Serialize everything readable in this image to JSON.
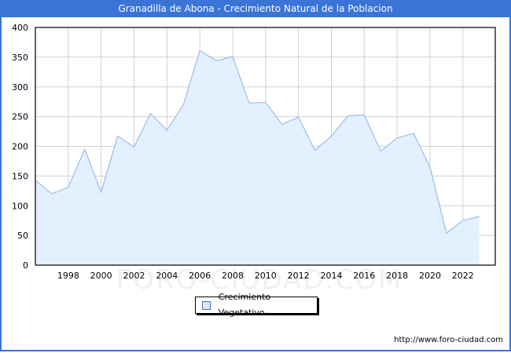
{
  "header": {
    "title": "Granadilla de Abona - Crecimiento Natural de la Poblacion"
  },
  "legend": {
    "label": "Crecimiento Vegetativo"
  },
  "footer": {
    "url": "http://www.foro-ciudad.com"
  },
  "watermark": "FORO-CIUDAD.COM",
  "colors": {
    "title_bar": "#3a74d6",
    "line": "#9bbdeb",
    "fill": "#e3f0fd",
    "grid": "#d0d0d0"
  },
  "axes": {
    "y_ticks": [
      "0",
      "50",
      "100",
      "150",
      "200",
      "250",
      "300",
      "350",
      "400"
    ],
    "x_ticks": [
      "1998",
      "2000",
      "2002",
      "2004",
      "2006",
      "2008",
      "2010",
      "2012",
      "2014",
      "2016",
      "2018",
      "2020",
      "2022"
    ]
  },
  "chart_data": {
    "type": "area",
    "title": "Granadilla de Abona - Crecimiento Natural de la Poblacion",
    "xlabel": "",
    "ylabel": "",
    "ylim": [
      0,
      400
    ],
    "xlim": [
      1996,
      2023
    ],
    "grid": true,
    "legend_position": "bottom-center",
    "x": [
      1996,
      1997,
      1998,
      1999,
      2000,
      2001,
      2002,
      2003,
      2004,
      2005,
      2006,
      2007,
      2008,
      2009,
      2010,
      2011,
      2012,
      2013,
      2014,
      2015,
      2016,
      2017,
      2018,
      2019,
      2020,
      2021,
      2022,
      2023
    ],
    "series": [
      {
        "name": "Crecimiento Vegetativo",
        "values": [
          143,
          120,
          131,
          195,
          123,
          217,
          199,
          255,
          227,
          270,
          361,
          344,
          351,
          273,
          274,
          237,
          249,
          193,
          217,
          251,
          253,
          192,
          214,
          222,
          165,
          54,
          75,
          82
        ]
      }
    ]
  }
}
